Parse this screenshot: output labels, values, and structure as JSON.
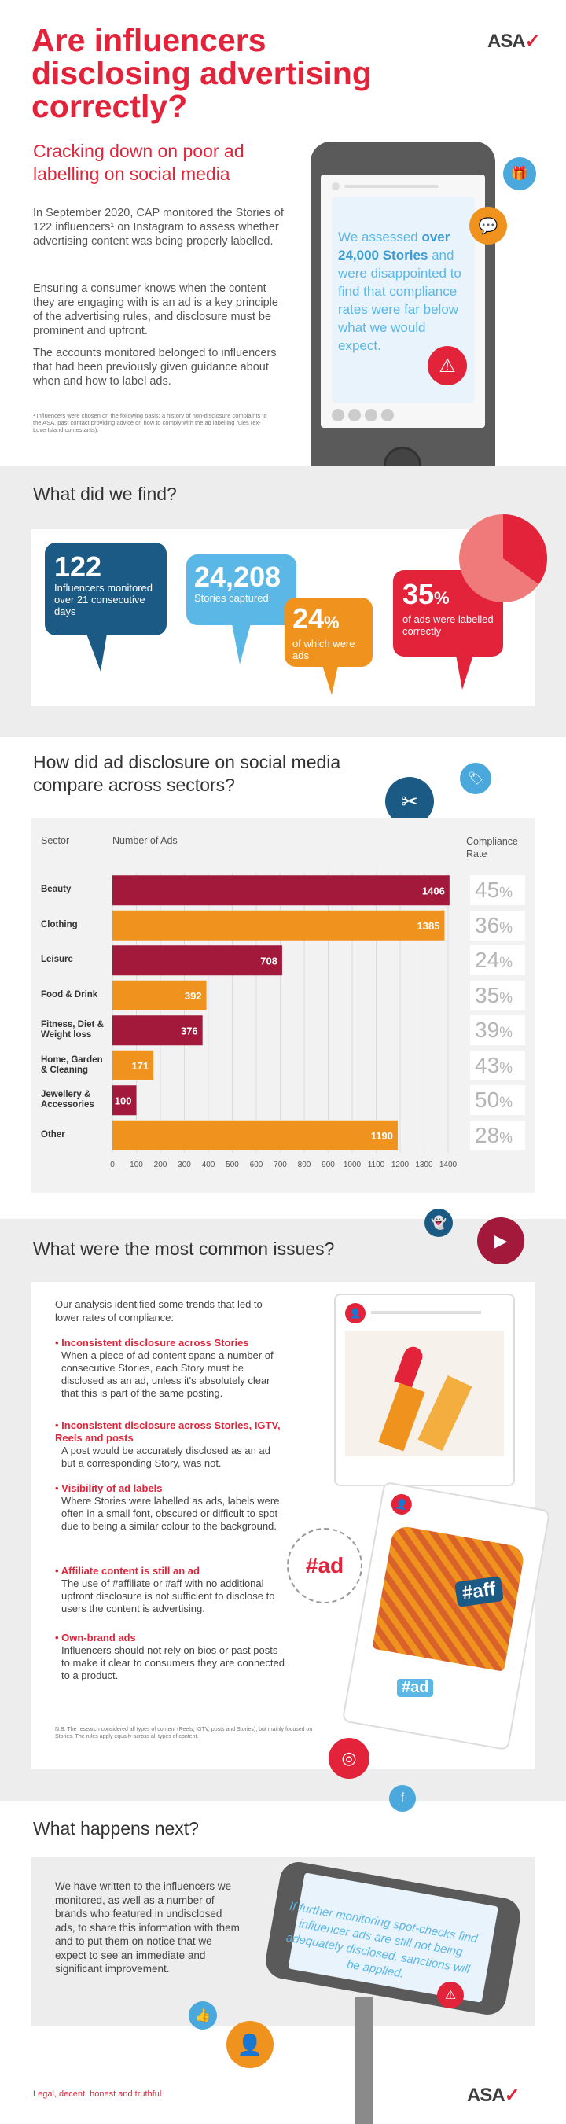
{
  "header": {
    "title": "Are influencers disclosing advertising correctly?",
    "logo": "ASA",
    "subtitle": "Cracking down on poor ad labelling on social media",
    "paragraphs": [
      "In September 2020, CAP monitored the Stories of 122 influencers¹ on Instagram to assess whether advertising content was being properly labelled.",
      "Ensuring a consumer knows when the content they are engaging with is an ad is a key principle of the advertising rules, and disclosure must be prominent and upfront.",
      "The accounts monitored belonged to influencers that had been previously given guidance about when and how to label ads."
    ],
    "footnote": "¹ Influencers were chosen on the following basis: a history of non-disclosure complaints to the ASA, past contact providing advice on how to comply with the ad labelling rules (ex-Love Island contestants).",
    "phone_text_pre": "We assessed ",
    "phone_text_bold": "over 24,000 Stories",
    "phone_text_post": " and were disappointed to find that compliance rates were far below what we would expect."
  },
  "find": {
    "heading": "What did we find?",
    "stats": [
      {
        "value": "122",
        "label": "Influencers monitored over 21 consecutive days"
      },
      {
        "value": "24,208",
        "label": "Stories captured"
      },
      {
        "value": "24",
        "unit": "%",
        "label": "of which were ads"
      },
      {
        "value": "35",
        "unit": "%",
        "label": "of ads were labelled correctly"
      }
    ],
    "pie_share": 0.35
  },
  "compare": {
    "heading": "How did ad disclosure on social media compare across sectors?",
    "col_sector": "Sector",
    "col_ads": "Number of Ads",
    "col_rate": "Compliance Rate"
  },
  "chart_data": {
    "type": "bar",
    "orientation": "horizontal",
    "categories": [
      "Beauty",
      "Clothing",
      "Leisure",
      "Food & Drink",
      "Fitness, Diet & Weight loss",
      "Home, Garden & Cleaning",
      "Jewellery & Accessories",
      "Other"
    ],
    "values": [
      1406,
      1385,
      708,
      392,
      376,
      171,
      100,
      1190
    ],
    "compliance_rate": [
      45,
      36,
      24,
      35,
      39,
      43,
      50,
      28
    ],
    "xlim": [
      0,
      1400
    ],
    "xticks": [
      0,
      100,
      200,
      300,
      400,
      500,
      600,
      700,
      800,
      900,
      1000,
      1100,
      1200,
      1300,
      1400
    ],
    "colors": [
      "#a3193b",
      "#f0931e",
      "#a3193b",
      "#f0931e",
      "#a3193b",
      "#f0931e",
      "#a3193b",
      "#f0931e"
    ],
    "grid": true,
    "xlabel": "",
    "ylabel": ""
  },
  "issues": {
    "heading": "What were the most common issues?",
    "intro": "Our analysis identified some trends that led to lower rates of compliance:",
    "items": [
      {
        "title": "Inconsistent disclosure across Stories",
        "body": "When a piece of ad content spans a number of consecutive Stories, each Story must be disclosed as an ad, unless it's absolutely clear that this is part of the same posting."
      },
      {
        "title": "Inconsistent disclosure across Stories, IGTV, Reels and posts",
        "body": "A post would be accurately disclosed as an ad but a corresponding Story, was not."
      },
      {
        "title": "Visibility of ad labels",
        "body": "Where Stories were labelled as ads, labels were often in a small font, obscured or difficult to spot due to being a similar colour to the background."
      },
      {
        "title": "Affiliate content is still an ad",
        "body": "The use of #affiliate or #aff with no additional upfront disclosure is not sufficient to disclose to users the content is advertising."
      },
      {
        "title": "Own-brand ads",
        "body": "Influencers should not rely on bios or past posts to make it clear to consumers they are connected to a product."
      }
    ],
    "note": "N.B. The research considered all types of content (Reels, IGTV, posts and Stories), but mainly focused on Stories. The rules apply equally across all types of content.",
    "tag_ad": "#ad",
    "tag_aff": "#aff",
    "tag_ad2": "#ad"
  },
  "next": {
    "heading": "What happens next?",
    "body": "We have written to the influencers we monitored, as well as a number of brands who featured in undisclosed ads, to share this information with them and to put them on notice that we expect to see an immediate and significant improvement.",
    "phone_text": "If further monitoring spot-checks find influencer ads are still not being adequately disclosed, sanctions will be applied.",
    "legal": "Legal, decent, honest and truthful",
    "logo": "ASA"
  }
}
